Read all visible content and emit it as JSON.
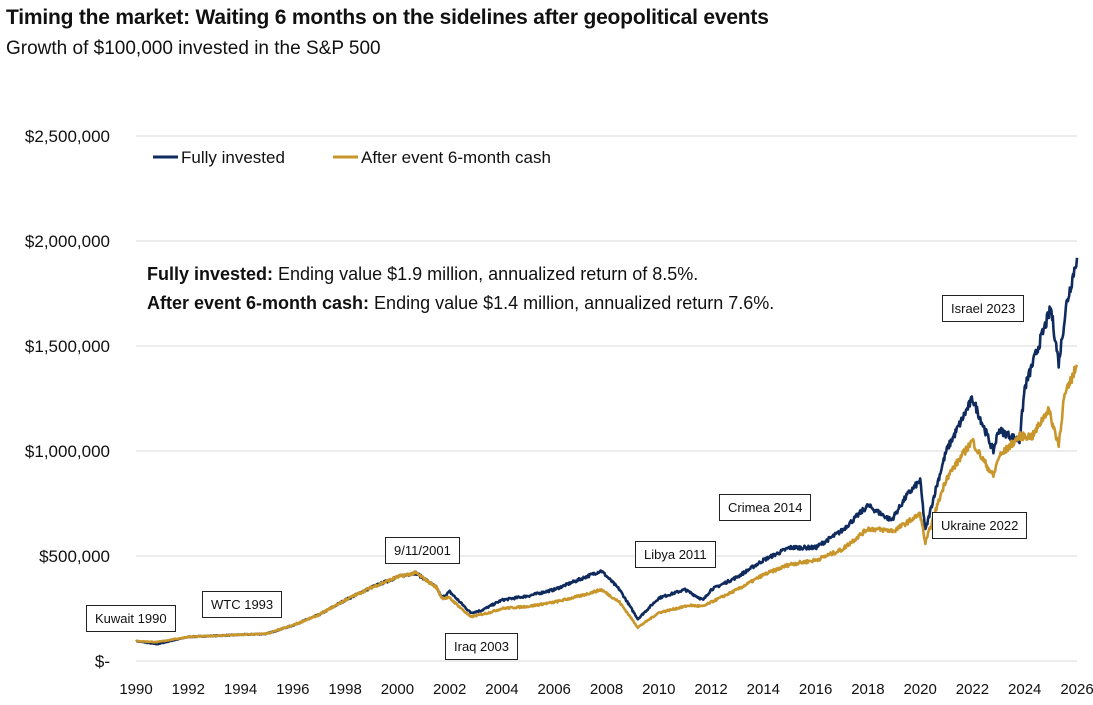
{
  "chart_data": {
    "type": "line",
    "title": "Timing the market: Waiting 6 months on the sidelines after geopolitical events",
    "subtitle": "Growth of $100,000 invested in the S&P 500",
    "xlabel": "",
    "ylabel": "",
    "xlim": [
      1990,
      2026
    ],
    "ylim": [
      0,
      2500000
    ],
    "x_ticks": [
      "1990",
      "1992",
      "1994",
      "1996",
      "1998",
      "2000",
      "2002",
      "2004",
      "2006",
      "2008",
      "2010",
      "2012",
      "2014",
      "2016",
      "2018",
      "2020",
      "2022",
      "2024",
      "2026"
    ],
    "y_ticks": [
      {
        "value": 0,
        "label": "$-"
      },
      {
        "value": 500000,
        "label": "$500,000"
      },
      {
        "value": 1000000,
        "label": "$1,000,000"
      },
      {
        "value": 1500000,
        "label": "$1,500,000"
      },
      {
        "value": 2000000,
        "label": "$2,000,000"
      },
      {
        "value": 2500000,
        "label": "$2,500,000"
      }
    ],
    "grid": true,
    "legend_position": "top-left",
    "series": [
      {
        "name": "Fully invested",
        "color": "#0f2a5c",
        "x": [
          1990,
          1990.8,
          1992,
          1994,
          1995,
          1996,
          1997,
          1998,
          1999,
          2000,
          2000.7,
          2001.5,
          2001.7,
          2002,
          2002.8,
          2003.2,
          2004,
          2005,
          2006,
          2007,
          2007.8,
          2008.5,
          2009.2,
          2010,
          2011,
          2011.7,
          2012,
          2013,
          2014,
          2015,
          2016,
          2017,
          2018,
          2018.9,
          2019.5,
          2020,
          2020.2,
          2020.6,
          2021,
          2022,
          2022.8,
          2023,
          2023.8,
          2024,
          2025,
          2025.3,
          2025.6,
          2026
        ],
        "y": [
          95000,
          80000,
          115000,
          125000,
          130000,
          170000,
          220000,
          290000,
          350000,
          400000,
          420000,
          350000,
          300000,
          330000,
          230000,
          240000,
          290000,
          310000,
          340000,
          390000,
          430000,
          340000,
          200000,
          300000,
          340000,
          290000,
          340000,
          400000,
          480000,
          540000,
          540000,
          620000,
          740000,
          670000,
          790000,
          860000,
          620000,
          820000,
          1000000,
          1250000,
          1000000,
          1100000,
          1050000,
          1300000,
          1680000,
          1420000,
          1700000,
          1920000
        ]
      },
      {
        "name": "After event 6-month cash",
        "color": "#c8962a",
        "x": [
          1990,
          1990.8,
          1992,
          1994,
          1995,
          1996,
          1997,
          1998,
          1999,
          2000,
          2000.7,
          2001.5,
          2001.7,
          2002,
          2002.8,
          2003.5,
          2004,
          2005,
          2006,
          2007,
          2007.8,
          2008.5,
          2009.2,
          2010,
          2011,
          2011.2,
          2011.7,
          2012,
          2013,
          2014,
          2015,
          2016,
          2017,
          2018,
          2019,
          2020,
          2020.2,
          2020.6,
          2021,
          2022,
          2022.2,
          2022.8,
          2023,
          2023.8,
          2024.3,
          2024.9,
          2025.3,
          2025.5,
          2026
        ],
        "y": [
          95000,
          90000,
          115000,
          125000,
          130000,
          170000,
          220000,
          290000,
          350000,
          400000,
          420000,
          350000,
          300000,
          300000,
          210000,
          230000,
          250000,
          260000,
          280000,
          310000,
          340000,
          280000,
          160000,
          230000,
          260000,
          265000,
          260000,
          280000,
          340000,
          410000,
          460000,
          480000,
          530000,
          630000,
          620000,
          700000,
          560000,
          720000,
          870000,
          1050000,
          1000000,
          880000,
          970000,
          1070000,
          1070000,
          1200000,
          1030000,
          1250000,
          1410000
        ]
      }
    ],
    "annotations": [
      "Kuwait 1990",
      "WTC 1993",
      "9/11/2001",
      "Iraq 2003",
      "Libya 2011",
      "Crimea 2014",
      "Ukraine 2022",
      "Israel 2023"
    ],
    "notes": [
      {
        "bold": "Fully invested:",
        "text": " Ending value $1.9 million, annualized return of 8.5%."
      },
      {
        "bold": "After event 6-month cash:",
        "text": " Ending value $1.4 million, annualized return 7.6%."
      }
    ]
  }
}
